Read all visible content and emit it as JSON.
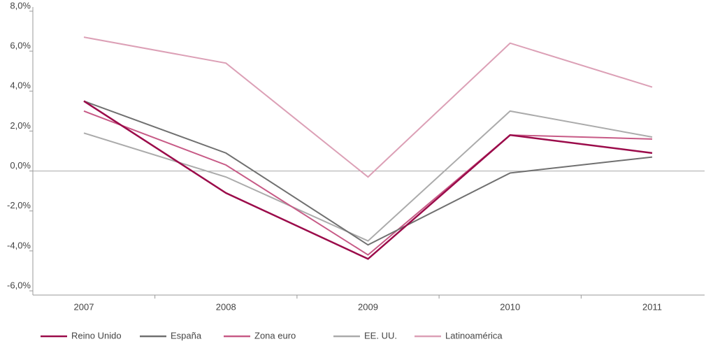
{
  "chart_data": {
    "type": "line",
    "categories": [
      "2007",
      "2008",
      "2009",
      "2010",
      "2011"
    ],
    "series": [
      {
        "name": "Reino Unido",
        "color": "#9b0b4a",
        "values": [
          3.5,
          -1.1,
          -4.4,
          1.8,
          0.9
        ]
      },
      {
        "name": "España",
        "color": "#707070",
        "values": [
          3.5,
          0.9,
          -3.7,
          -0.1,
          0.7
        ]
      },
      {
        "name": "Zona euro",
        "color": "#c75a86",
        "values": [
          3.0,
          0.3,
          -4.2,
          1.8,
          1.6
        ]
      },
      {
        "name": "EE. UU.",
        "color": "#ababab",
        "values": [
          1.9,
          -0.3,
          -3.5,
          3.0,
          1.7
        ]
      },
      {
        "name": "Latinoamérica",
        "color": "#dca0b6",
        "values": [
          6.7,
          5.4,
          -0.3,
          6.4,
          4.2
        ]
      }
    ],
    "ylim": [
      -6,
      8
    ],
    "yticks": [
      {
        "value": -6,
        "label": "-6,0%"
      },
      {
        "value": -4,
        "label": "-4,0%"
      },
      {
        "value": -2,
        "label": "-2,0%"
      },
      {
        "value": 0,
        "label": "0,0%"
      },
      {
        "value": 2,
        "label": "2,0%"
      },
      {
        "value": 4,
        "label": "4,0%"
      },
      {
        "value": 6,
        "label": "6,0%"
      },
      {
        "value": 8,
        "label": "8,0%"
      }
    ],
    "legend": "bottom"
  }
}
